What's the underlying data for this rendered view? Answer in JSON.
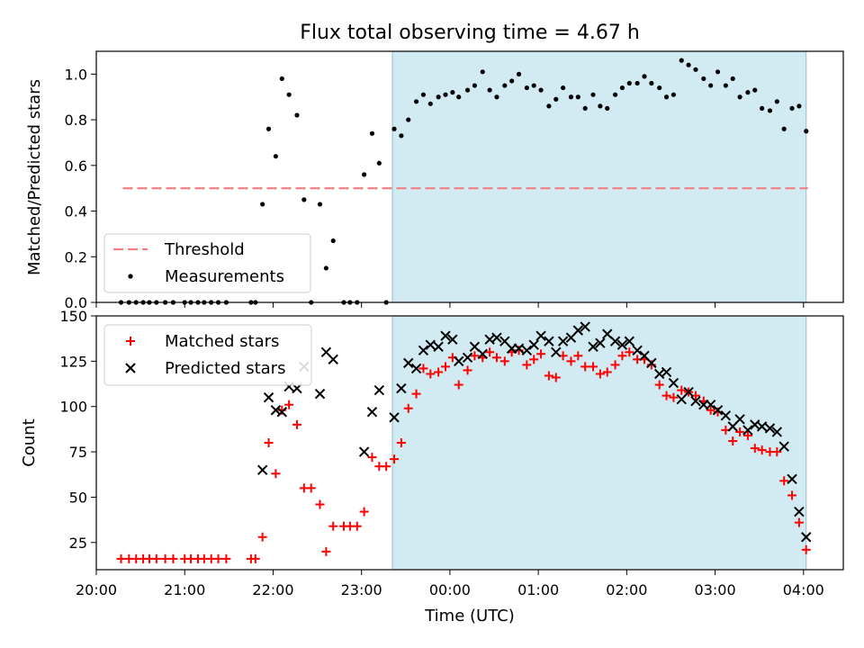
{
  "chart_data": [
    {
      "type": "scatter",
      "title": "Flux total observing time = 4.67 h",
      "xlabel": "",
      "ylabel": "Matched/Predicted stars",
      "ylim": [
        0,
        1.1
      ],
      "yticks": [
        "0.0",
        "0.2",
        "0.4",
        "0.6",
        "0.8",
        "1.0"
      ],
      "grid": false,
      "legend_position": "lower-left",
      "shaded_interval_hours": [
        23.35,
        28.03
      ],
      "shaded_color": "#add8e6",
      "threshold": {
        "name": "Threshold",
        "value": 0.5,
        "x_range_hours": [
          20.3,
          28.05
        ],
        "color": "#f08080"
      },
      "series": [
        {
          "name": "Measurements",
          "color": "#000000",
          "marker": "dot",
          "points": [
            [
              20.28,
              0
            ],
            [
              20.37,
              0
            ],
            [
              20.45,
              0
            ],
            [
              20.53,
              0
            ],
            [
              20.6,
              0
            ],
            [
              20.68,
              0
            ],
            [
              20.78,
              0
            ],
            [
              20.87,
              0
            ],
            [
              21.0,
              0
            ],
            [
              21.07,
              0
            ],
            [
              21.15,
              0
            ],
            [
              21.22,
              0
            ],
            [
              21.3,
              0
            ],
            [
              21.38,
              0
            ],
            [
              21.47,
              0
            ],
            [
              21.75,
              0
            ],
            [
              21.8,
              0
            ],
            [
              21.88,
              0.43
            ],
            [
              21.95,
              0.76
            ],
            [
              22.03,
              0.64
            ],
            [
              22.1,
              0.98
            ],
            [
              22.18,
              0.91
            ],
            [
              22.27,
              0.82
            ],
            [
              22.35,
              0.45
            ],
            [
              22.43,
              0
            ],
            [
              22.53,
              0.43
            ],
            [
              22.6,
              0.15
            ],
            [
              22.68,
              0.27
            ],
            [
              22.8,
              0
            ],
            [
              22.87,
              0
            ],
            [
              22.95,
              0
            ],
            [
              23.03,
              0.56
            ],
            [
              23.12,
              0.74
            ],
            [
              23.2,
              0.61
            ],
            [
              23.28,
              0
            ],
            [
              23.37,
              0.76
            ],
            [
              23.45,
              0.73
            ],
            [
              23.53,
              0.8
            ],
            [
              23.62,
              0.88
            ],
            [
              23.7,
              0.91
            ],
            [
              23.78,
              0.87
            ],
            [
              23.87,
              0.9
            ],
            [
              23.95,
              0.91
            ],
            [
              24.03,
              0.92
            ],
            [
              24.1,
              0.9
            ],
            [
              24.2,
              0.93
            ],
            [
              24.28,
              0.95
            ],
            [
              24.37,
              1.01
            ],
            [
              24.45,
              0.93
            ],
            [
              24.53,
              0.9
            ],
            [
              24.62,
              0.95
            ],
            [
              24.7,
              0.97
            ],
            [
              24.78,
              1.0
            ],
            [
              24.87,
              0.94
            ],
            [
              24.95,
              0.95
            ],
            [
              25.03,
              0.93
            ],
            [
              25.12,
              0.86
            ],
            [
              25.2,
              0.89
            ],
            [
              25.28,
              0.94
            ],
            [
              25.37,
              0.9
            ],
            [
              25.45,
              0.9
            ],
            [
              25.53,
              0.85
            ],
            [
              25.62,
              0.91
            ],
            [
              25.7,
              0.86
            ],
            [
              25.78,
              0.85
            ],
            [
              25.87,
              0.91
            ],
            [
              25.95,
              0.94
            ],
            [
              26.03,
              0.96
            ],
            [
              26.12,
              0.96
            ],
            [
              26.2,
              0.99
            ],
            [
              26.28,
              0.96
            ],
            [
              26.37,
              0.94
            ],
            [
              26.45,
              0.9
            ],
            [
              26.53,
              0.91
            ],
            [
              26.62,
              1.06
            ],
            [
              26.7,
              1.04
            ],
            [
              26.78,
              1.02
            ],
            [
              26.87,
              0.98
            ],
            [
              26.95,
              0.95
            ],
            [
              27.03,
              1.01
            ],
            [
              27.12,
              0.95
            ],
            [
              27.2,
              0.98
            ],
            [
              27.28,
              0.9
            ],
            [
              27.37,
              0.92
            ],
            [
              27.45,
              0.93
            ],
            [
              27.53,
              0.85
            ],
            [
              27.62,
              0.84
            ],
            [
              27.7,
              0.88
            ],
            [
              27.78,
              0.76
            ],
            [
              27.87,
              0.85
            ],
            [
              27.95,
              0.86
            ],
            [
              28.03,
              0.75
            ]
          ]
        }
      ]
    },
    {
      "type": "scatter",
      "title": "",
      "xlabel": "Time (UTC)",
      "ylabel": "Count",
      "ylim": [
        10,
        150
      ],
      "yticks": [
        "25",
        "50",
        "75",
        "100",
        "125",
        "150"
      ],
      "xticks": [
        "20:00",
        "21:00",
        "22:00",
        "23:00",
        "00:00",
        "01:00",
        "02:00",
        "03:00",
        "04:00"
      ],
      "grid": false,
      "legend_position": "upper-left",
      "shaded_interval_hours": [
        23.35,
        28.03
      ],
      "shaded_color": "#add8e6",
      "series": [
        {
          "name": "Matched stars",
          "color": "#ff0000",
          "marker": "plus",
          "points": [
            [
              20.28,
              16
            ],
            [
              20.37,
              16
            ],
            [
              20.45,
              16
            ],
            [
              20.53,
              16
            ],
            [
              20.6,
              16
            ],
            [
              20.68,
              16
            ],
            [
              20.78,
              16
            ],
            [
              20.87,
              16
            ],
            [
              21.0,
              16
            ],
            [
              21.07,
              16
            ],
            [
              21.15,
              16
            ],
            [
              21.22,
              16
            ],
            [
              21.3,
              16
            ],
            [
              21.38,
              16
            ],
            [
              21.47,
              16
            ],
            [
              21.75,
              16
            ],
            [
              21.8,
              16
            ],
            [
              21.88,
              28
            ],
            [
              21.95,
              80
            ],
            [
              22.03,
              63
            ],
            [
              22.1,
              98
            ],
            [
              22.18,
              101
            ],
            [
              22.27,
              90
            ],
            [
              22.35,
              55
            ],
            [
              22.43,
              55
            ],
            [
              22.53,
              46
            ],
            [
              22.6,
              20
            ],
            [
              22.68,
              34
            ],
            [
              22.8,
              34
            ],
            [
              22.87,
              34
            ],
            [
              22.95,
              34
            ],
            [
              23.03,
              42
            ],
            [
              23.12,
              72
            ],
            [
              23.2,
              67
            ],
            [
              23.28,
              67
            ],
            [
              23.37,
              71
            ],
            [
              23.45,
              80
            ],
            [
              23.53,
              99
            ],
            [
              23.62,
              107
            ],
            [
              23.7,
              121
            ],
            [
              23.78,
              118
            ],
            [
              23.87,
              119
            ],
            [
              23.95,
              122
            ],
            [
              24.03,
              127
            ],
            [
              24.1,
              112
            ],
            [
              24.2,
              120
            ],
            [
              24.28,
              128
            ],
            [
              24.37,
              127
            ],
            [
              24.45,
              130
            ],
            [
              24.53,
              127
            ],
            [
              24.62,
              125
            ],
            [
              24.7,
              130
            ],
            [
              24.78,
              131
            ],
            [
              24.87,
              123
            ],
            [
              24.95,
              126
            ],
            [
              25.03,
              129
            ],
            [
              25.12,
              117
            ],
            [
              25.2,
              116
            ],
            [
              25.28,
              128
            ],
            [
              25.37,
              125
            ],
            [
              25.45,
              128
            ],
            [
              25.53,
              122
            ],
            [
              25.62,
              122
            ],
            [
              25.7,
              118
            ],
            [
              25.78,
              119
            ],
            [
              25.87,
              123
            ],
            [
              25.95,
              128
            ],
            [
              26.03,
              130
            ],
            [
              26.12,
              126
            ],
            [
              26.2,
              126
            ],
            [
              26.28,
              123
            ],
            [
              26.37,
              112
            ],
            [
              26.45,
              106
            ],
            [
              26.53,
              105
            ],
            [
              26.62,
              109
            ],
            [
              26.7,
              108
            ],
            [
              26.78,
              106
            ],
            [
              26.87,
              103
            ],
            [
              26.95,
              98
            ],
            [
              27.03,
              97
            ],
            [
              27.12,
              87
            ],
            [
              27.2,
              81
            ],
            [
              27.28,
              86
            ],
            [
              27.37,
              84
            ],
            [
              27.45,
              77
            ],
            [
              27.53,
              76
            ],
            [
              27.62,
              75
            ],
            [
              27.7,
              75
            ],
            [
              27.78,
              59
            ],
            [
              27.87,
              51
            ],
            [
              27.95,
              36
            ],
            [
              28.03,
              21
            ]
          ]
        },
        {
          "name": "Predicted stars",
          "color": "#000000",
          "marker": "x",
          "points": [
            [
              21.88,
              65
            ],
            [
              21.95,
              105
            ],
            [
              22.03,
              98
            ],
            [
              22.1,
              97
            ],
            [
              22.18,
              111
            ],
            [
              22.27,
              110
            ],
            [
              22.35,
              122
            ],
            [
              22.53,
              107
            ],
            [
              22.6,
              130
            ],
            [
              22.68,
              126
            ],
            [
              23.03,
              75
            ],
            [
              23.12,
              97
            ],
            [
              23.2,
              109
            ],
            [
              23.37,
              94
            ],
            [
              23.45,
              110
            ],
            [
              23.53,
              124
            ],
            [
              23.62,
              121
            ],
            [
              23.7,
              131
            ],
            [
              23.78,
              134
            ],
            [
              23.87,
              133
            ],
            [
              23.95,
              139
            ],
            [
              24.03,
              137
            ],
            [
              24.1,
              125
            ],
            [
              24.2,
              127
            ],
            [
              24.28,
              133
            ],
            [
              24.37,
              129
            ],
            [
              24.45,
              137
            ],
            [
              24.53,
              138
            ],
            [
              24.62,
              136
            ],
            [
              24.7,
              132
            ],
            [
              24.78,
              132
            ],
            [
              24.87,
              131
            ],
            [
              24.95,
              134
            ],
            [
              25.03,
              139
            ],
            [
              25.12,
              136
            ],
            [
              25.2,
              130
            ],
            [
              25.28,
              136
            ],
            [
              25.37,
              138
            ],
            [
              25.45,
              142
            ],
            [
              25.53,
              144
            ],
            [
              25.62,
              133
            ],
            [
              25.7,
              135
            ],
            [
              25.78,
              140
            ],
            [
              25.87,
              136
            ],
            [
              25.95,
              134
            ],
            [
              26.03,
              136
            ],
            [
              26.12,
              131
            ],
            [
              26.2,
              128
            ],
            [
              26.28,
              124
            ],
            [
              26.37,
              118
            ],
            [
              26.45,
              119
            ],
            [
              26.53,
              113
            ],
            [
              26.62,
              104
            ],
            [
              26.7,
              108
            ],
            [
              26.78,
              103
            ],
            [
              26.87,
              101
            ],
            [
              26.95,
              101
            ],
            [
              27.03,
              98
            ],
            [
              27.12,
              95
            ],
            [
              27.2,
              89
            ],
            [
              27.28,
              93
            ],
            [
              27.37,
              87
            ],
            [
              27.45,
              90
            ],
            [
              27.53,
              89
            ],
            [
              27.62,
              88
            ],
            [
              27.7,
              86
            ],
            [
              27.78,
              78
            ],
            [
              27.87,
              60
            ],
            [
              27.95,
              42
            ],
            [
              28.03,
              28
            ]
          ]
        }
      ]
    }
  ]
}
